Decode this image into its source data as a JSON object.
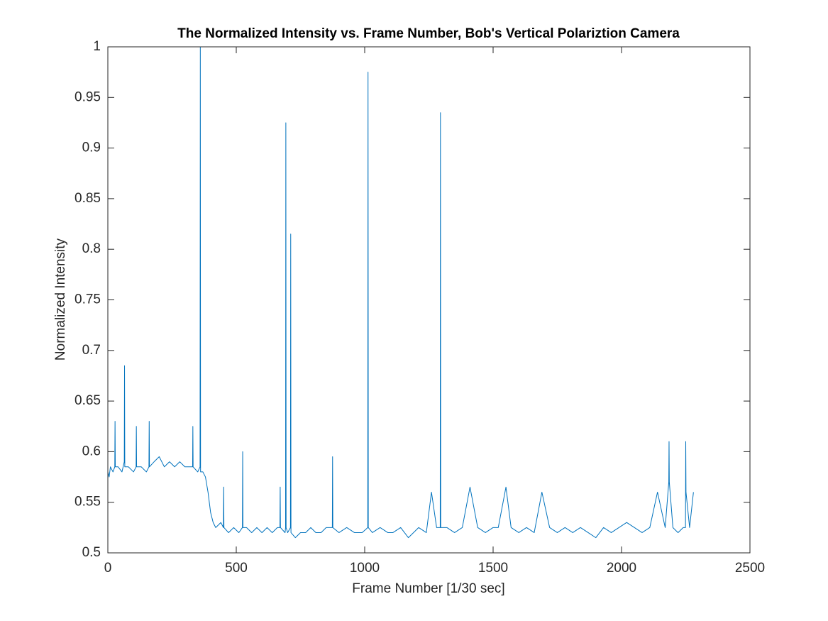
{
  "chart_data": {
    "type": "line",
    "title": "The Normalized Intensity vs. Frame Number, Bob's Vertical Polariztion Camera",
    "xlabel": "Frame Number [1/30 sec]",
    "ylabel": "Normalized Intensity",
    "color": "#0072bd",
    "xlim": [
      0,
      2500
    ],
    "xticks": [
      0,
      500,
      1000,
      1500,
      2000,
      2500
    ],
    "ylim": [
      0.5,
      1
    ],
    "yticks": [
      0.5,
      0.55,
      0.6,
      0.65,
      0.7,
      0.75,
      0.8,
      0.85,
      0.9,
      0.95,
      1
    ],
    "x": [
      0,
      5,
      10,
      20,
      27,
      28,
      29,
      40,
      55,
      64,
      65,
      66,
      80,
      100,
      110,
      111,
      112,
      130,
      150,
      160,
      161,
      162,
      180,
      200,
      220,
      240,
      260,
      280,
      300,
      320,
      330,
      331,
      332,
      350,
      359,
      360,
      361,
      370,
      380,
      390,
      400,
      410,
      420,
      440,
      450,
      451,
      452,
      470,
      490,
      510,
      524,
      525,
      526,
      540,
      560,
      580,
      600,
      620,
      640,
      660,
      670,
      671,
      672,
      690,
      692,
      693,
      694,
      700,
      711,
      712,
      713,
      730,
      750,
      770,
      790,
      810,
      830,
      850,
      874,
      875,
      876,
      900,
      930,
      960,
      990,
      1012,
      1013,
      1014,
      1030,
      1060,
      1090,
      1110,
      1140,
      1170,
      1190,
      1210,
      1240,
      1260,
      1280,
      1294,
      1295,
      1296,
      1320,
      1350,
      1380,
      1410,
      1440,
      1470,
      1500,
      1520,
      1550,
      1570,
      1600,
      1630,
      1660,
      1690,
      1720,
      1750,
      1780,
      1810,
      1840,
      1870,
      1900,
      1930,
      1960,
      1990,
      2020,
      2050,
      2080,
      2110,
      2140,
      2170,
      2184,
      2185,
      2186,
      2200,
      2220,
      2240,
      2249,
      2250,
      2251,
      2265,
      2280
    ],
    "values": [
      0.58,
      0.575,
      0.585,
      0.58,
      0.585,
      0.63,
      0.585,
      0.585,
      0.58,
      0.59,
      0.685,
      0.585,
      0.585,
      0.58,
      0.585,
      0.625,
      0.585,
      0.585,
      0.58,
      0.585,
      0.63,
      0.585,
      0.59,
      0.595,
      0.585,
      0.59,
      0.585,
      0.59,
      0.585,
      0.585,
      0.585,
      0.625,
      0.585,
      0.58,
      0.585,
      1,
      0.58,
      0.58,
      0.575,
      0.56,
      0.54,
      0.53,
      0.525,
      0.53,
      0.525,
      0.565,
      0.525,
      0.52,
      0.525,
      0.52,
      0.525,
      0.6,
      0.525,
      0.525,
      0.52,
      0.525,
      0.52,
      0.525,
      0.52,
      0.525,
      0.525,
      0.565,
      0.525,
      0.52,
      0.525,
      0.925,
      0.525,
      0.52,
      0.525,
      0.815,
      0.52,
      0.515,
      0.52,
      0.52,
      0.525,
      0.52,
      0.52,
      0.525,
      0.525,
      0.595,
      0.525,
      0.52,
      0.525,
      0.52,
      0.52,
      0.525,
      0.975,
      0.525,
      0.52,
      0.525,
      0.52,
      0.52,
      0.525,
      0.515,
      0.52,
      0.525,
      0.52,
      0.56,
      0.525,
      0.525,
      0.935,
      0.525,
      0.525,
      0.52,
      0.525,
      0.565,
      0.525,
      0.52,
      0.525,
      0.525,
      0.565,
      0.525,
      0.52,
      0.525,
      0.52,
      0.56,
      0.525,
      0.52,
      0.525,
      0.52,
      0.525,
      0.52,
      0.515,
      0.525,
      0.52,
      0.525,
      0.53,
      0.525,
      0.52,
      0.525,
      0.56,
      0.525,
      0.57,
      0.61,
      0.57,
      0.525,
      0.52,
      0.525,
      0.525,
      0.61,
      0.56,
      0.525,
      0.56
    ]
  }
}
